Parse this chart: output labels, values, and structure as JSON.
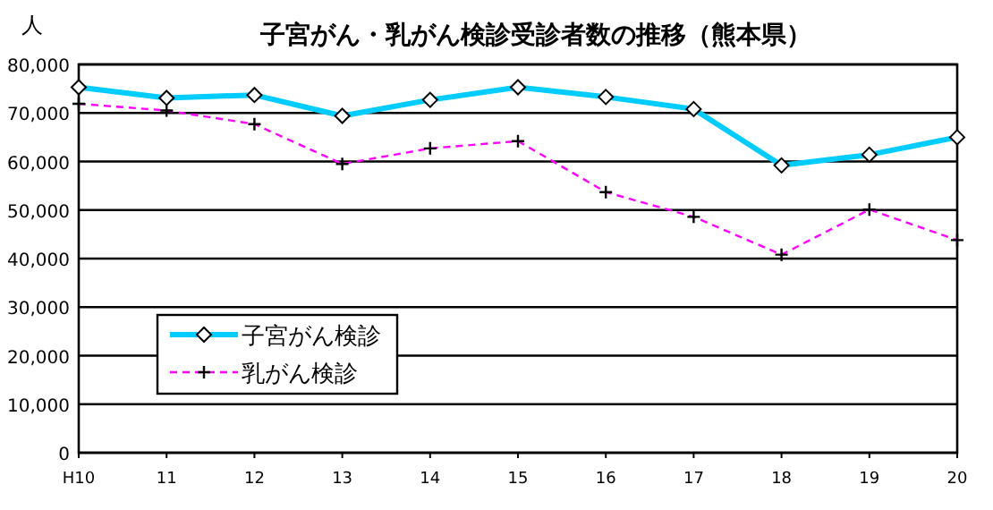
{
  "chart_data": {
    "type": "line",
    "title": "子宮がん・乳がん検診受診者数の推移（熊本県）",
    "ylabel": "人",
    "categories": [
      "H10",
      "11",
      "12",
      "13",
      "14",
      "15",
      "16",
      "17",
      "18",
      "19",
      "20"
    ],
    "series": [
      {
        "name": "子宮がん検診",
        "color": "#00ccff",
        "marker": "diamond",
        "line_style": "solid",
        "values": [
          75300,
          73100,
          73700,
          69400,
          72700,
          75300,
          73300,
          70800,
          59200,
          61400,
          65000
        ]
      },
      {
        "name": "乳がん検診",
        "color": "#ff00ff",
        "marker": "cross",
        "line_style": "dashed",
        "values": [
          71900,
          70500,
          67700,
          59500,
          62700,
          64200,
          53700,
          48600,
          40800,
          50100,
          43800
        ]
      }
    ],
    "ylim": [
      0,
      80000
    ],
    "yticks": [
      {
        "value": 0,
        "label": "0"
      },
      {
        "value": 10000,
        "label": "10,000"
      },
      {
        "value": 20000,
        "label": "20,000"
      },
      {
        "value": 30000,
        "label": "30,000"
      },
      {
        "value": 40000,
        "label": "40,000"
      },
      {
        "value": 50000,
        "label": "50,000"
      },
      {
        "value": 60000,
        "label": "60,000"
      },
      {
        "value": 70000,
        "label": "70,000"
      },
      {
        "value": 80000,
        "label": "80,000"
      }
    ],
    "grid": "y",
    "legend": "bottom left"
  }
}
